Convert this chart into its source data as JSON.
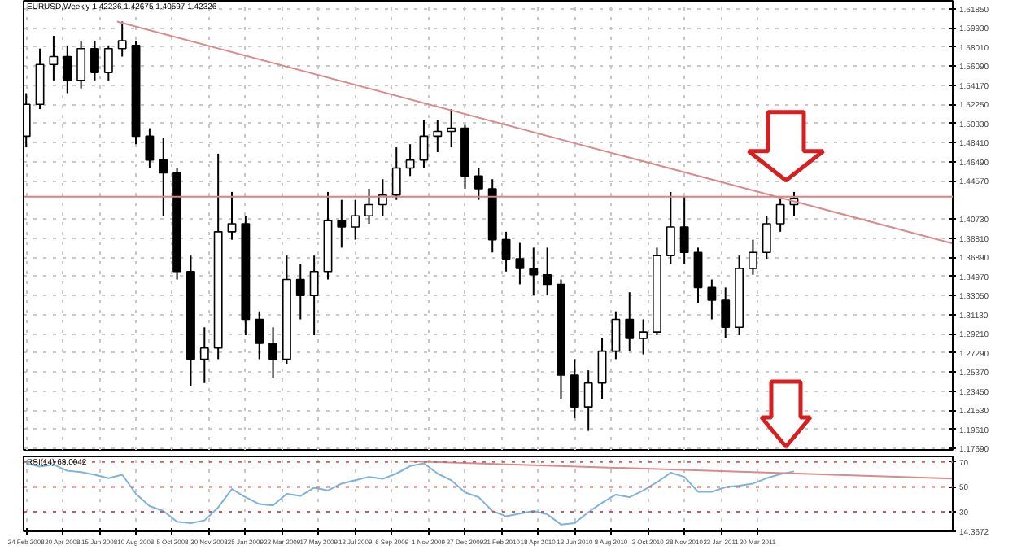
{
  "chart_data": [
    {
      "type": "candlestick",
      "title": "EURUSD,Weekly 1.42236 1.42675 1.40597 1.42326",
      "color": "#000000",
      "x": [
        "2008-02-24",
        "2008-03-16",
        "2008-04-06",
        "2008-04-27",
        "2008-05-18",
        "2008-06-08",
        "2008-06-29",
        "2008-07-20",
        "2008-08-10",
        "2008-08-31",
        "2008-09-21",
        "2008-10-12",
        "2008-11-02",
        "2008-11-23",
        "2008-12-14",
        "2009-01-04",
        "2009-01-25",
        "2009-02-15",
        "2009-03-08",
        "2009-03-29",
        "2009-04-19",
        "2009-05-10",
        "2009-05-31",
        "2009-06-21",
        "2009-07-12",
        "2009-08-02",
        "2009-08-23",
        "2009-09-13",
        "2009-10-04",
        "2009-10-25",
        "2009-11-15",
        "2009-12-06",
        "2009-12-27",
        "2010-01-17",
        "2010-02-07",
        "2010-02-28",
        "2010-03-21",
        "2010-04-11",
        "2010-05-02",
        "2010-05-23",
        "2010-06-13",
        "2010-07-04",
        "2010-07-25",
        "2010-08-15",
        "2010-09-05",
        "2010-09-26",
        "2010-10-17",
        "2010-11-07",
        "2010-11-28",
        "2010-12-19",
        "2011-01-09",
        "2011-01-30",
        "2011-02-20",
        "2011-03-13",
        "2011-04-03",
        "2011-04-24",
        "2011-05-15"
      ],
      "ohlc": [
        [
          1.4905,
          1.5337,
          1.4793,
          1.5225
        ],
        [
          1.5225,
          1.5785,
          1.5177,
          1.5625
        ],
        [
          1.5625,
          1.5913,
          1.5465,
          1.5705
        ],
        [
          1.5705,
          1.5817,
          1.5337,
          1.5465
        ],
        [
          1.5465,
          1.5865,
          1.5385,
          1.5785
        ],
        [
          1.5785,
          1.5865,
          1.5465,
          1.5545
        ],
        [
          1.5545,
          1.5817,
          1.5465,
          1.5785
        ],
        [
          1.5785,
          1.6057,
          1.5705,
          1.5865
        ],
        [
          1.5817,
          1.5865,
          1.4825,
          1.4905
        ],
        [
          1.4905,
          1.4985,
          1.4585,
          1.4665
        ],
        [
          1.4665,
          1.4889,
          1.4105,
          1.4537
        ],
        [
          1.4537,
          1.4585,
          1.3465,
          1.3545
        ],
        [
          1.3545,
          1.3705,
          1.2393,
          1.2665
        ],
        [
          1.2665,
          1.2985,
          1.2425,
          1.2777
        ],
        [
          1.2777,
          1.4729,
          1.2665,
          1.3945
        ],
        [
          1.3945,
          1.4345,
          1.3865,
          1.4025
        ],
        [
          1.4025,
          1.4105,
          1.2905,
          1.3065
        ],
        [
          1.3065,
          1.3145,
          1.2665,
          1.2825
        ],
        [
          1.2825,
          1.2985,
          1.2473,
          1.2665
        ],
        [
          1.2665,
          1.3705,
          1.2617,
          1.3465
        ],
        [
          1.3465,
          1.3625,
          1.3065,
          1.3305
        ],
        [
          1.3305,
          1.3705,
          1.2905,
          1.3545
        ],
        [
          1.3545,
          1.4345,
          1.3465,
          1.4057
        ],
        [
          1.4057,
          1.4265,
          1.3785,
          1.3993
        ],
        [
          1.3993,
          1.4265,
          1.3865,
          1.4105
        ],
        [
          1.4105,
          1.4377,
          1.4025,
          1.4217
        ],
        [
          1.4217,
          1.4473,
          1.4105,
          1.4313
        ],
        [
          1.4313,
          1.4793,
          1.4265,
          1.4585
        ],
        [
          1.4585,
          1.4825,
          1.4505,
          1.4665
        ],
        [
          1.4665,
          1.5065,
          1.4585,
          1.4905
        ],
        [
          1.4905,
          1.5065,
          1.4745,
          1.4953
        ],
        [
          1.4953,
          1.5177,
          1.4793,
          1.4985
        ],
        [
          1.4985,
          1.5017,
          1.4377,
          1.4505
        ],
        [
          1.4505,
          1.4585,
          1.4265,
          1.4377
        ],
        [
          1.4377,
          1.4473,
          1.3737,
          1.3865
        ],
        [
          1.3865,
          1.3945,
          1.3545,
          1.3673
        ],
        [
          1.3673,
          1.3833,
          1.3417,
          1.3577
        ],
        [
          1.3577,
          1.3785,
          1.3305,
          1.3513
        ],
        [
          1.3513,
          1.3785,
          1.3305,
          1.3417
        ],
        [
          1.3417,
          1.3465,
          1.2265,
          1.2505
        ],
        [
          1.2505,
          1.2665,
          1.2073,
          1.2185
        ],
        [
          1.2185,
          1.2553,
          1.1945,
          1.2425
        ],
        [
          1.2425,
          1.2873,
          1.2265,
          1.2745
        ],
        [
          1.2745,
          1.3145,
          1.2665,
          1.3065
        ],
        [
          1.3065,
          1.3337,
          1.2745,
          1.2873
        ],
        [
          1.2873,
          1.3065,
          1.2713,
          1.2937
        ],
        [
          1.2937,
          1.3785,
          1.2905,
          1.3705
        ],
        [
          1.3705,
          1.4345,
          1.3625,
          1.3993
        ],
        [
          1.3993,
          1.4297,
          1.3625,
          1.3737
        ],
        [
          1.3737,
          1.3785,
          1.3225,
          1.3385
        ],
        [
          1.3385,
          1.3465,
          1.3065,
          1.3257
        ],
        [
          1.3257,
          1.3385,
          1.2873,
          1.2985
        ],
        [
          1.2985,
          1.3705,
          1.2905,
          1.3577
        ],
        [
          1.3577,
          1.3865,
          1.3513,
          1.3737
        ],
        [
          1.3737,
          1.4105,
          1.3673,
          1.4025
        ],
        [
          1.4025,
          1.4297,
          1.3945,
          1.4217
        ],
        [
          1.4217,
          1.4345,
          1.4105,
          1.4281
        ]
      ],
      "series": [
        {
          "type": "line",
          "color": "#d98a8a",
          "x": [
            "2008-07-12",
            "2012-01-13"
          ],
          "values": [
            1.6057,
            1.3827
          ]
        }
      ],
      "ref_lines": [
        {
          "axis": "y",
          "value": 1.4297,
          "color": "#e08080",
          "line_style": "solid"
        }
      ],
      "xlim": [
        "2008-02-20",
        "2012-01-13"
      ],
      "ylim": [
        1.1753,
        1.6265
      ],
      "xticks": [
        "2008-02-24",
        "2008-04-20",
        "2008-06-15",
        "2008-08-10",
        "2008-10-05",
        "2008-11-30",
        "2009-01-25",
        "2009-03-22",
        "2009-05-17",
        "2009-07-12",
        "2009-09-06",
        "2009-11-01",
        "2009-12-27",
        "2010-02-21",
        "2010-04-18",
        "2010-06-13",
        "2010-08-08",
        "2010-10-03",
        "2010-11-28",
        "2011-01-23",
        "2011-03-20"
      ],
      "yticks": [
        {
          "value": 1.6185,
          "label": "1.61850"
        },
        {
          "value": 1.5993,
          "label": "1.59930"
        },
        {
          "value": 1.5801,
          "label": "1.58010"
        },
        {
          "value": 1.5609,
          "label": "1.56090"
        },
        {
          "value": 1.5417,
          "label": "1.54170"
        },
        {
          "value": 1.5225,
          "label": "1.52250"
        },
        {
          "value": 1.5033,
          "label": "1.50330"
        },
        {
          "value": 1.4841,
          "label": "1.48410"
        },
        {
          "value": 1.4649,
          "label": "1.46490"
        },
        {
          "value": 1.4457,
          "label": "1.44570"
        },
        {
          "value": 1.4073,
          "label": "1.40730"
        },
        {
          "value": 1.3881,
          "label": "1.38810"
        },
        {
          "value": 1.3689,
          "label": "1.36890"
        },
        {
          "value": 1.3497,
          "label": "1.34970"
        },
        {
          "value": 1.3305,
          "label": "1.33050"
        },
        {
          "value": 1.3113,
          "label": "1.31130"
        },
        {
          "value": 1.2921,
          "label": "1.29210"
        },
        {
          "value": 1.2729,
          "label": "1.27290"
        },
        {
          "value": 1.2537,
          "label": "1.25370"
        },
        {
          "value": 1.2345,
          "label": "1.23450"
        },
        {
          "value": 1.2153,
          "label": "1.21530"
        },
        {
          "value": 1.1961,
          "label": "1.19610"
        },
        {
          "value": 1.1769,
          "label": "1.17690"
        }
      ],
      "tick_labels": "y",
      "grid": true
    },
    {
      "type": "line",
      "title": "RSI(14) 63.0042",
      "color": "#7fb2d8",
      "x": [
        "2008-02-24",
        "2008-03-16",
        "2008-04-06",
        "2008-04-27",
        "2008-05-18",
        "2008-06-08",
        "2008-06-29",
        "2008-07-20",
        "2008-08-10",
        "2008-08-31",
        "2008-09-21",
        "2008-10-12",
        "2008-11-02",
        "2008-11-23",
        "2008-12-14",
        "2009-01-04",
        "2009-01-25",
        "2009-02-15",
        "2009-03-08",
        "2009-03-29",
        "2009-04-19",
        "2009-05-10",
        "2009-05-31",
        "2009-06-21",
        "2009-07-12",
        "2009-08-02",
        "2009-08-23",
        "2009-09-13",
        "2009-10-04",
        "2009-10-25",
        "2009-11-15",
        "2009-12-06",
        "2009-12-27",
        "2010-01-17",
        "2010-02-07",
        "2010-02-28",
        "2010-03-21",
        "2010-04-11",
        "2010-05-02",
        "2010-05-23",
        "2010-06-13",
        "2010-07-04",
        "2010-07-25",
        "2010-08-15",
        "2010-09-05",
        "2010-09-26",
        "2010-10-17",
        "2010-11-07",
        "2010-11-28",
        "2010-12-19",
        "2011-01-09",
        "2011-01-30",
        "2011-02-20",
        "2011-03-13",
        "2011-04-03",
        "2011-04-24",
        "2011-05-15"
      ],
      "values": [
        68.9,
        66.2,
        67.8,
        62.9,
        61.8,
        59.7,
        56.9,
        59.7,
        44.4,
        34.6,
        30.7,
        22.0,
        20.9,
        23.1,
        33.5,
        48.2,
        41.7,
        36.2,
        35.1,
        44.4,
        42.7,
        49.3,
        47.1,
        52.6,
        55.3,
        58.0,
        56.4,
        60.7,
        66.7,
        68.9,
        60.7,
        55.3,
        45.5,
        41.7,
        30.7,
        26.4,
        28.6,
        30.7,
        28.0,
        19.8,
        20.9,
        29.7,
        37.3,
        43.8,
        41.7,
        47.1,
        53.7,
        61.3,
        58.0,
        46.0,
        46.0,
        49.8,
        50.9,
        52.6,
        56.9,
        60.2,
        62.4
      ],
      "series": [
        {
          "type": "line",
          "color": "#d98a8a",
          "x": [
            "2009-10-03",
            "2012-01-13"
          ],
          "values": [
            70.6,
            56.7
          ]
        }
      ],
      "ref_lines": [
        {
          "axis": "y",
          "value": 70,
          "color": "#c06060",
          "line_style": "dotted"
        },
        {
          "axis": "y",
          "value": 50,
          "color": "#c06060",
          "line_style": "dotted"
        },
        {
          "axis": "y",
          "value": 30,
          "color": "#c06060",
          "line_style": "dotted"
        }
      ],
      "xlim": [
        "2008-02-20",
        "2012-01-13"
      ],
      "ylim": [
        14.3672,
        74.4036
      ],
      "xticks": [
        {
          "value": "2008-02-24",
          "label": "24 Feb 2008"
        },
        {
          "value": "2008-04-20",
          "label": "20 Apr 2008"
        },
        {
          "value": "2008-06-15",
          "label": "15 Jun 2008"
        },
        {
          "value": "2008-08-10",
          "label": "10 Aug 2008"
        },
        {
          "value": "2008-10-05",
          "label": "5 Oct 2008"
        },
        {
          "value": "2008-11-30",
          "label": "30 Nov 2008"
        },
        {
          "value": "2009-01-25",
          "label": "25 Jan 2009"
        },
        {
          "value": "2009-03-22",
          "label": "22 Mar 2009"
        },
        {
          "value": "2009-05-17",
          "label": "17 May 2009"
        },
        {
          "value": "2009-07-12",
          "label": "12 Jul 2009"
        },
        {
          "value": "2009-09-06",
          "label": "6 Sep 2009"
        },
        {
          "value": "2009-11-01",
          "label": "1 Nov 2009"
        },
        {
          "value": "2009-12-27",
          "label": "27 Dec 2009"
        },
        {
          "value": "2010-02-21",
          "label": "21 Feb 2010"
        },
        {
          "value": "2010-04-18",
          "label": "18 Apr 2010"
        },
        {
          "value": "2010-06-13",
          "label": "13 Jun 2010"
        },
        {
          "value": "2010-08-08",
          "label": "8 Aug 2010"
        },
        {
          "value": "2010-10-03",
          "label": "3 Oct 2010"
        },
        {
          "value": "2010-11-28",
          "label": "28 Nov 2010"
        },
        {
          "value": "2011-01-23",
          "label": "23 Jan 2011"
        },
        {
          "value": "2011-03-20",
          "label": "20 Mar 2011"
        }
      ],
      "yticks": [
        70,
        50,
        30,
        {
          "value": 14.3672,
          "label": "14.3672"
        }
      ],
      "grid": "x"
    }
  ]
}
